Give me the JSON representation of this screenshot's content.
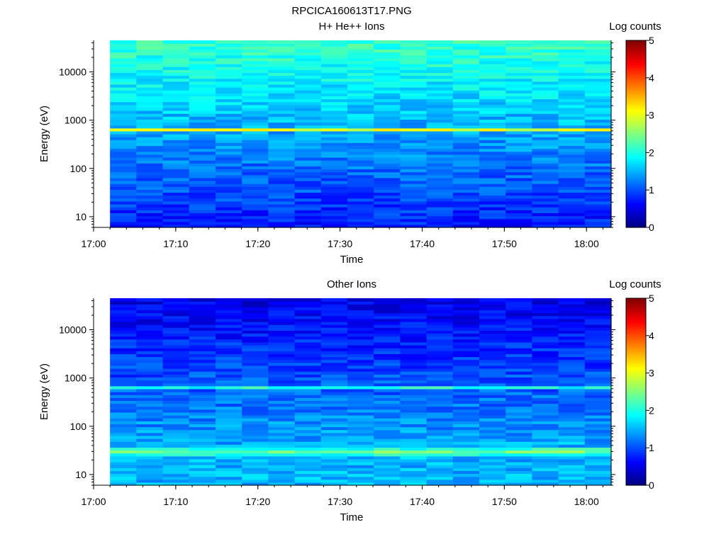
{
  "figure": {
    "title": "RPCICA160613T17.PNG"
  },
  "colorbar": {
    "title": "Log counts",
    "range": [
      0,
      5
    ],
    "ticks": [
      "0",
      "1",
      "2",
      "3",
      "4",
      "5"
    ],
    "colormap": "jet"
  },
  "chart_data": [
    {
      "type": "heatmap",
      "title": "H+ He++ Ions",
      "xlabel": "Time",
      "ylabel": "Energy (eV)",
      "y_scale": "log",
      "x_range": [
        "17:00",
        "18:03"
      ],
      "data_start": "17:02",
      "y_range": [
        6,
        45000
      ],
      "x_tick_labels": [
        "17:00",
        "17:10",
        "17:20",
        "17:30",
        "17:40",
        "17:50",
        "18:00"
      ],
      "y_tick_labels": [
        "10",
        "100",
        "1000",
        "10000"
      ],
      "z_label": "Log counts",
      "z_range": [
        0,
        5
      ],
      "features": [
        {
          "energy_eV": 630,
          "log_counts": 3.0
        },
        {
          "energy_eV": 10000,
          "log_counts": 1.9
        },
        {
          "energy_eV": 100,
          "log_counts": 1.1
        },
        {
          "energy_eV": 10,
          "log_counts": 0.8
        }
      ]
    },
    {
      "type": "heatmap",
      "title": "Other Ions",
      "xlabel": "Time",
      "ylabel": "Energy (eV)",
      "y_scale": "log",
      "x_range": [
        "17:00",
        "18:03"
      ],
      "data_start": "17:02",
      "y_range": [
        6,
        45000
      ],
      "x_tick_labels": [
        "17:00",
        "17:10",
        "17:20",
        "17:30",
        "17:40",
        "17:50",
        "18:00"
      ],
      "y_tick_labels": [
        "10",
        "100",
        "1000",
        "10000"
      ],
      "z_label": "Log counts",
      "z_range": [
        0,
        5
      ],
      "features": [
        {
          "energy_eV": 30,
          "log_counts": 2.4
        },
        {
          "energy_eV": 650,
          "log_counts": 2.0
        },
        {
          "energy_eV": 10000,
          "log_counts": 0.7
        },
        {
          "energy_eV": 10,
          "log_counts": 1.5
        }
      ]
    }
  ]
}
